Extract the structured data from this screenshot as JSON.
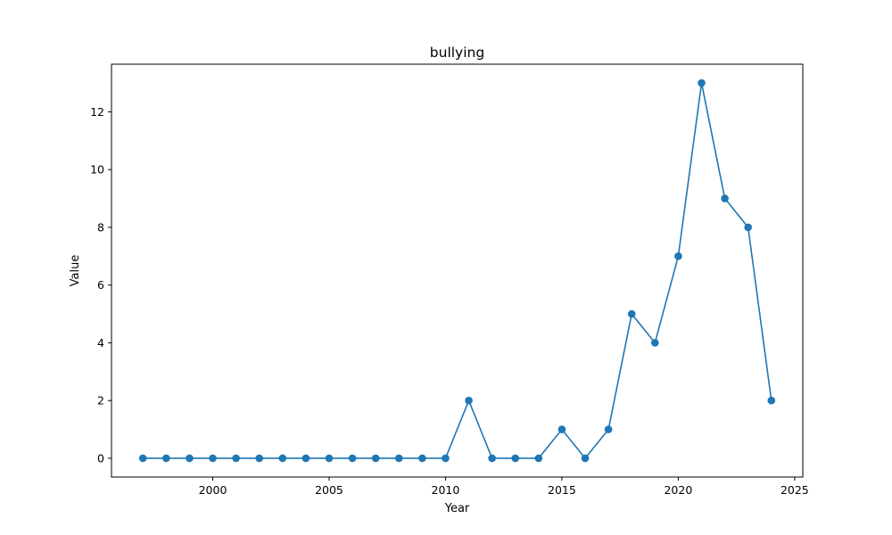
{
  "chart_data": {
    "type": "line",
    "title": "bullying",
    "xlabel": "Year",
    "ylabel": "Value",
    "xlim": [
      1995.65,
      2025.35
    ],
    "ylim": [
      -0.65,
      13.65
    ],
    "x_ticks": [
      2000,
      2005,
      2010,
      2015,
      2020,
      2025
    ],
    "y_ticks": [
      0,
      2,
      4,
      6,
      8,
      10,
      12
    ],
    "grid": false,
    "marker": "circle",
    "colors": {
      "series": "#1f77b4",
      "axes": "#000000",
      "background": "#ffffff"
    },
    "series": [
      {
        "x": [
          1997,
          1998,
          1999,
          2000,
          2001,
          2002,
          2003,
          2004,
          2005,
          2006,
          2007,
          2008,
          2009,
          2010,
          2011,
          2012,
          2013,
          2014,
          2015,
          2016,
          2017,
          2018,
          2019,
          2020,
          2021,
          2022,
          2023,
          2024
        ],
        "values": [
          0,
          0,
          0,
          0,
          0,
          0,
          0,
          0,
          0,
          0,
          0,
          0,
          0,
          0,
          2,
          0,
          0,
          0,
          1,
          0,
          1,
          5,
          4,
          7,
          13,
          9,
          8,
          2
        ]
      }
    ]
  }
}
